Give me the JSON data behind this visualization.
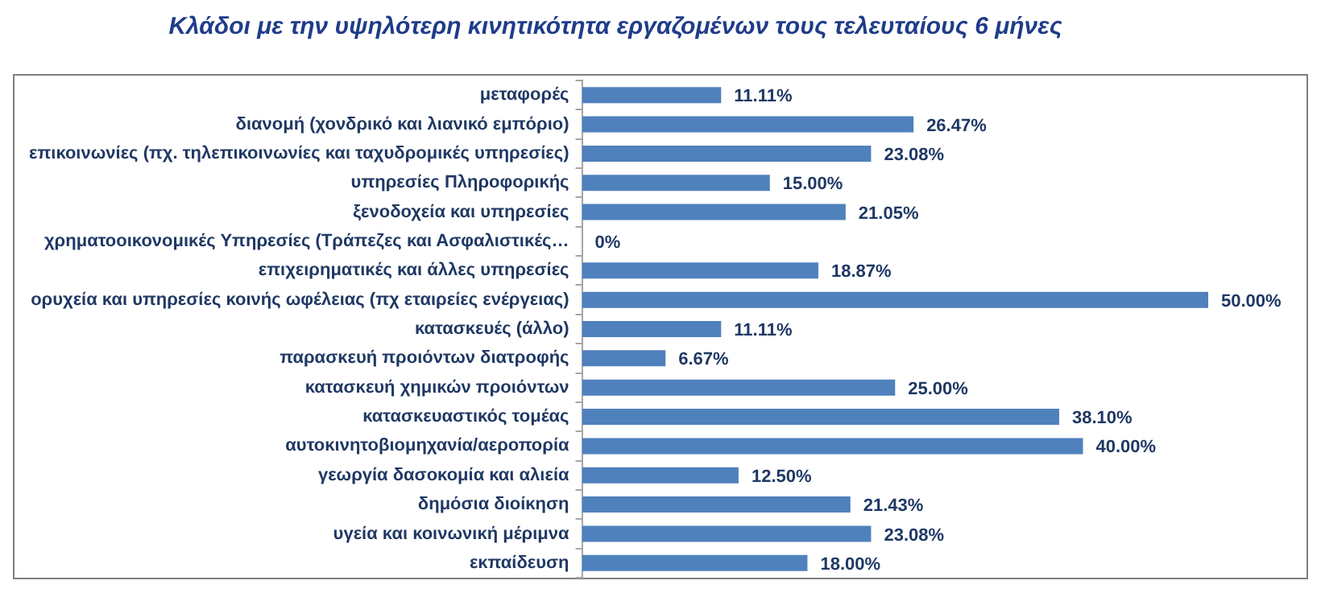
{
  "chart_data": {
    "type": "bar",
    "orientation": "horizontal",
    "title": "Κλάδοι με την υψηλότερη κινητικότητα εργαζομένων τους τελευταίους 6 μήνες",
    "categories": [
      "μεταφορές",
      "διανομή (χονδρικό και λιανικό εμπόριο)",
      "επικοινωνίες (πχ. τηλεπικοινωνίες και ταχυδρομικές υπηρεσίες)",
      "υπηρεσίες Πληροφορικής",
      "ξενοδοχεία και υπηρεσίες",
      "χρηματοοικονομικές Υπηρεσίες (Τράπεζες και Ασφαλιστικές…",
      "επιχειρηματικές και άλλες υπηρεσίες",
      "ορυχεία και υπηρεσίες κοινής ωφέλειας (πχ εταιρείες ενέργειας)",
      "κατασκευές (άλλο)",
      "παρασκευή προιόντων διατροφής",
      "κατασκευή χημικών προιόντων",
      "κατασκευαστικός τομέας",
      "αυτοκινητοβιομηχανία/αεροπορία",
      "γεωργία δασοκομία και αλιεία",
      "δημόσια διοίκηση",
      "υγεία και κοινωνική μέριμνα",
      "εκπαίδευση"
    ],
    "values": [
      11.11,
      26.47,
      23.08,
      15.0,
      21.05,
      0,
      18.87,
      50.0,
      11.11,
      6.67,
      25.0,
      38.1,
      40.0,
      12.5,
      21.43,
      23.08,
      18.0
    ],
    "value_labels": [
      "11.11%",
      "26.47%",
      "23.08%",
      "15.00%",
      "21.05%",
      "0%",
      "18.87%",
      "50.00%",
      "11.11%",
      "6.67%",
      "25.00%",
      "38.10%",
      "40.00%",
      "12.50%",
      "21.43%",
      "23.08%",
      "18.00%"
    ],
    "color": "#4f81bd",
    "legend": false,
    "tick_labels": "y"
  }
}
